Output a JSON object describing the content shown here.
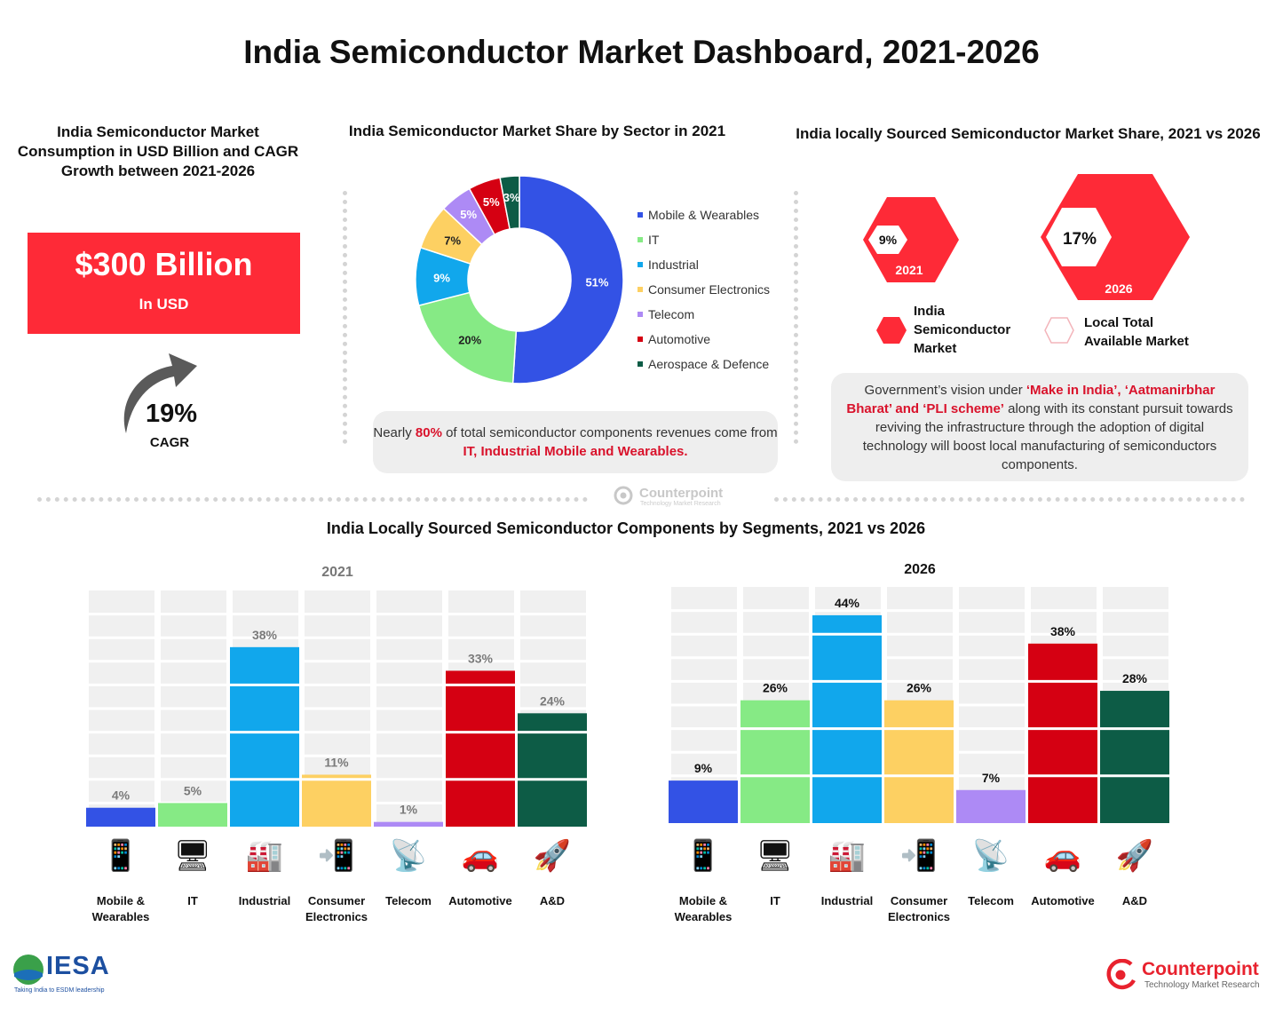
{
  "title": "India Semiconductor Market Dashboard, 2021-2026",
  "consumption": {
    "title": "India Semiconductor Market Consumption in USD Billion and CAGR Growth between 2021-2026",
    "value": "$300 Billion",
    "unit": "In USD",
    "cagr_value": "19%",
    "cagr_label": "CAGR",
    "colors": {
      "box": "#fe2a37",
      "arrow": "#555555"
    }
  },
  "share_by_sector": {
    "title": "India Semiconductor Market Share by Sector in 2021",
    "note_prefix": "Nearly ",
    "note_highlight1": "80%",
    "note_middle": " of total semiconductor components revenues come from ",
    "note_highlight2": "IT, Industrial Mobile and Wearables."
  },
  "local_share": {
    "title": "India locally Sourced Semiconductor Market Share, 2021 vs 2026",
    "hex_2021": {
      "value": "9%",
      "year": "2021"
    },
    "hex_2026": {
      "value": "17%",
      "year": "2026"
    },
    "legend_market": "India Semiconductor Market",
    "legend_local": "Local Total Available Market",
    "note_prefix": "Government’s vision under ",
    "note_highlight": "‘Make in India’, ‘Aatmanirbhar Bharat’ and ‘PLI scheme’",
    "note_suffix": " along with its constant pursuit towards reviving the infrastructure through the adoption of digital technology will boost local manufacturing of semiconductors components."
  },
  "segments_title": "India Locally Sourced Semiconductor Components by Segments, 2021 vs 2026",
  "brand": {
    "counterpoint": "Counterpoint",
    "counterpoint_sub": "Technology Market Research",
    "iesa": "IESA",
    "iesa_tagline": "Taking India to ESDM leadership"
  },
  "chart_data": [
    {
      "type": "pie",
      "title": "India Semiconductor Market Share by Sector in 2021",
      "categories": [
        "Mobile & Wearables",
        "IT",
        "Industrial",
        "Consumer Electronics",
        "Telecom",
        "Automotive",
        "Aerospace & Defence"
      ],
      "values": [
        51,
        20,
        9,
        7,
        5,
        5,
        3
      ],
      "labels": [
        "51%",
        "20%",
        "9%",
        "7%",
        "5%",
        "5%",
        "3%"
      ],
      "colors": [
        "#3352e5",
        "#86ea85",
        "#11a7ec",
        "#fdd062",
        "#ad8af5",
        "#d50012",
        "#0d5c46"
      ],
      "legend": "right"
    },
    {
      "type": "bar",
      "title": "2021",
      "categories": [
        "Mobile & Wearables",
        "IT",
        "Industrial",
        "Consumer Electronics",
        "Telecom",
        "Automotive",
        "A&D"
      ],
      "values": [
        4,
        5,
        38,
        11,
        1,
        33,
        24
      ],
      "labels": [
        "4%",
        "5%",
        "38%",
        "11%",
        "1%",
        "33%",
        "24%"
      ],
      "ylim": [
        0,
        50
      ],
      "colors": [
        "#3352e5",
        "#86ea85",
        "#11a7ec",
        "#fdd062",
        "#ad8af5",
        "#d50012",
        "#0d5c46"
      ]
    },
    {
      "type": "bar",
      "title": "2026",
      "categories": [
        "Mobile & Wearables",
        "IT",
        "Industrial",
        "Consumer Electronics",
        "Telecom",
        "Automotive",
        "A&D"
      ],
      "values": [
        9,
        26,
        44,
        26,
        7,
        38,
        28
      ],
      "labels": [
        "9%",
        "26%",
        "44%",
        "26%",
        "7%",
        "38%",
        "28%"
      ],
      "ylim": [
        0,
        50
      ],
      "colors": [
        "#3352e5",
        "#86ea85",
        "#11a7ec",
        "#fdd062",
        "#ad8af5",
        "#d50012",
        "#0d5c46"
      ]
    }
  ],
  "category_icons": [
    "📱",
    "🖥",
    "🏭",
    "📲",
    "📡",
    "🚗",
    "🚀"
  ]
}
